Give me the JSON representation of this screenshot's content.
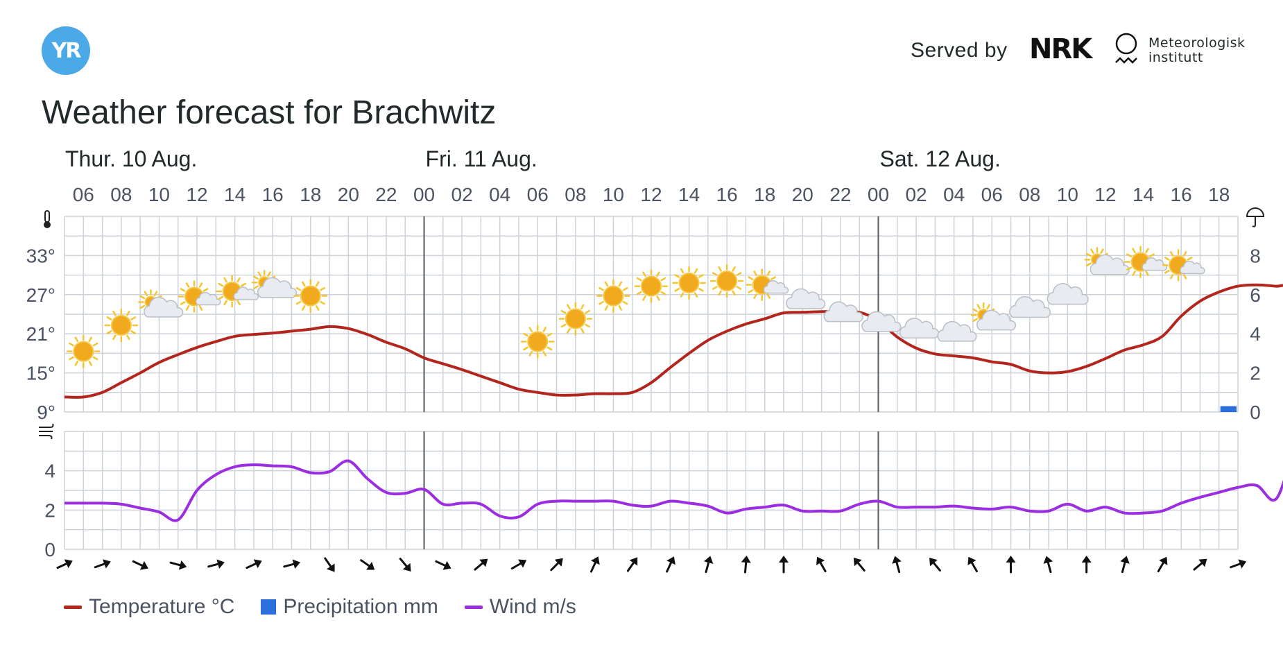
{
  "header": {
    "logo_text": "YR",
    "served_by": "Served by",
    "nrk_text": "NRK",
    "met_line1": "Meteorologisk",
    "met_line2": "institutt",
    "title": "Weather forecast for Brachwitz"
  },
  "colors": {
    "temperature": "#b3261e",
    "precipitation": "#2a6fdb",
    "wind": "#9b2ee0",
    "grid": "#ccd2d8",
    "day_divider": "#555a60"
  },
  "legend": {
    "temperature": "Temperature °C",
    "precipitation": "Precipitation mm",
    "wind": "Wind m/s"
  },
  "chart_data": {
    "type": "line",
    "days": [
      {
        "label": "Thur. 10 Aug.",
        "start_index": 0
      },
      {
        "label": "Fri. 11 Aug.",
        "start_index": 19
      },
      {
        "label": "Sat. 12 Aug.",
        "start_index": 43
      }
    ],
    "x_tick_labels": [
      "06",
      "08",
      "10",
      "12",
      "14",
      "16",
      "18",
      "20",
      "22",
      "00",
      "02",
      "04",
      "06",
      "08",
      "10",
      "12",
      "14",
      "16",
      "18",
      "20",
      "22",
      "00",
      "02",
      "04",
      "06",
      "08",
      "10",
      "12",
      "14",
      "16",
      "18"
    ],
    "temperature": {
      "name": "Temperature °C",
      "ylim": [
        9,
        39
      ],
      "y_ticks": [
        "9°",
        "15°",
        "21°",
        "27°",
        "33°"
      ],
      "values": [
        11.3,
        11.3,
        12,
        13.5,
        15,
        16.6,
        17.8,
        18.9,
        19.8,
        20.6,
        20.9,
        21.1,
        21.4,
        21.7,
        22.1,
        21.8,
        20.9,
        19.7,
        18.7,
        17.3,
        16.4,
        15.5,
        14.5,
        13.5,
        12.5,
        12,
        11.6,
        11.6,
        11.8,
        11.8,
        12,
        13.5,
        15.8,
        18,
        20,
        21.4,
        22.5,
        23.3,
        24.2,
        24.3,
        24.4,
        24.4,
        24.3,
        23,
        20.5,
        18.8,
        17.9,
        17.6,
        17.3,
        16.7,
        16.3,
        15.3,
        15,
        15.2,
        16,
        17.2,
        18.5,
        19.3,
        20.6,
        23.7,
        26,
        27.4,
        28.3,
        28.5,
        28.3,
        28.1,
        23.4
      ]
    },
    "precipitation": {
      "name": "Precipitation mm",
      "ylim": [
        0,
        10
      ],
      "y_ticks": [
        "0",
        "2",
        "4",
        "6",
        "8"
      ],
      "bars": [
        {
          "index": 61,
          "value": 0.3
        }
      ]
    },
    "wind": {
      "name": "Wind m/s",
      "ylim": [
        0,
        6
      ],
      "y_ticks": [
        "0",
        "2",
        "4"
      ],
      "values": [
        2.35,
        2.35,
        2.35,
        2.3,
        2.1,
        1.9,
        1.5,
        3,
        3.8,
        4.2,
        4.3,
        4.25,
        4.2,
        3.9,
        3.95,
        4.5,
        3.6,
        2.9,
        2.85,
        3.05,
        2.3,
        2.35,
        2.3,
        1.7,
        1.65,
        2.3,
        2.45,
        2.45,
        2.45,
        2.45,
        2.25,
        2.2,
        2.45,
        2.35,
        2.2,
        1.85,
        2.05,
        2.15,
        2.25,
        1.95,
        1.95,
        1.95,
        2.3,
        2.45,
        2.15,
        2.15,
        2.15,
        2.2,
        2.1,
        2.05,
        2.15,
        1.95,
        1.95,
        2.3,
        1.95,
        2.15,
        1.85,
        1.85,
        1.95,
        2.35,
        2.65,
        2.9,
        3.15,
        3.25,
        2.55,
        4.9,
        5.35
      ]
    },
    "wind_arrows_deg": [
      65,
      70,
      115,
      105,
      75,
      65,
      75,
      145,
      125,
      140,
      115,
      50,
      60,
      45,
      25,
      35,
      25,
      15,
      5,
      0,
      330,
      320,
      345,
      320,
      330,
      0,
      345,
      0,
      15,
      30,
      50,
      70
    ],
    "weather_icons": [
      {
        "time": "07",
        "symbol": "clear-sky-day",
        "temp": 18.3
      },
      {
        "time": "09",
        "symbol": "clear-sky-day",
        "temp": 22.3
      },
      {
        "time": "10",
        "symbol": "partly-cloudy-day",
        "temp": 24.8
      },
      {
        "time": "13",
        "symbol": "fair-day",
        "temp": 26.5
      },
      {
        "time": "15",
        "symbol": "fair-day",
        "temp": 27.3
      },
      {
        "time": "16",
        "symbol": "partly-cloudy-day",
        "temp": 27.8
      },
      {
        "time": "19",
        "symbol": "clear-sky-day",
        "temp": 26.8
      },
      {
        "time": "21",
        "symbol": "clear-sky-night",
        "temp": 22.8
      },
      {
        "time": "23",
        "symbol": "clear-sky-night",
        "temp": 20.3
      },
      {
        "time": "01",
        "symbol": "clear-sky-night",
        "temp": 17.8
      },
      {
        "time": "03",
        "symbol": "clear-sky-night",
        "temp": 16.3
      },
      {
        "time": "05",
        "symbol": "clear-sky-night",
        "temp": 16.8
      },
      {
        "time": "07",
        "symbol": "clear-sky-day",
        "temp": 19.8
      },
      {
        "time": "09",
        "symbol": "clear-sky-day",
        "temp": 23.3
      },
      {
        "time": "11",
        "symbol": "clear-sky-day",
        "temp": 26.8
      },
      {
        "time": "13",
        "symbol": "clear-sky-day",
        "temp": 28.3
      },
      {
        "time": "15",
        "symbol": "clear-sky-day",
        "temp": 28.8
      },
      {
        "time": "17",
        "symbol": "clear-sky-day",
        "temp": 29.1
      },
      {
        "time": "19",
        "symbol": "fair-day",
        "temp": 28.3
      },
      {
        "time": "21",
        "symbol": "partly-cloudy-night",
        "temp": 26.3
      },
      {
        "time": "23",
        "symbol": "partly-cloudy-night",
        "temp": 24.3
      },
      {
        "time": "01",
        "symbol": "partly-cloudy-night",
        "temp": 22.8
      },
      {
        "time": "03",
        "symbol": "partly-cloudy-night",
        "temp": 21.8
      },
      {
        "time": "05",
        "symbol": "partly-cloudy-night",
        "temp": 21.3
      },
      {
        "time": "07",
        "symbol": "partly-cloudy-day",
        "temp": 22.8
      },
      {
        "time": "09",
        "symbol": "cloudy",
        "temp": 24.8
      },
      {
        "time": "11",
        "symbol": "cloudy",
        "temp": 26.8
      },
      {
        "time": "13",
        "symbol": "partly-cloudy-day",
        "temp": 31.3
      },
      {
        "time": "15",
        "symbol": "fair-day",
        "temp": 31.8
      },
      {
        "time": "17",
        "symbol": "fair-day",
        "temp": 31.3
      }
    ]
  }
}
